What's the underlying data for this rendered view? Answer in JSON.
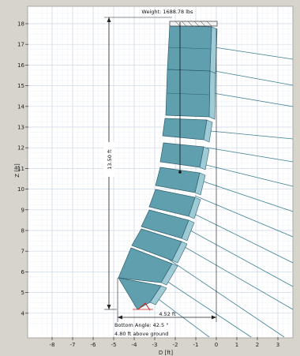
{
  "diagram": {
    "weight_label": "Weight: 1688.78 lbs",
    "height_dim_label": "13.50 ft",
    "width_dim_label": "4.52 ft",
    "bottom_angle_label": "Bottom Angle: 42.5 °",
    "above_ground_label": "4.80 ft above ground",
    "y_axis_label": "Z [ft]",
    "x_axis_label": "D [ft]",
    "y_ticks": [
      "18",
      "17",
      "16",
      "15",
      "14",
      "13",
      "12",
      "11",
      "10",
      "9",
      "8",
      "7",
      "6",
      "5",
      "4"
    ],
    "x_ticks": [
      "-8",
      "-7",
      "-6",
      "-5",
      "-4",
      "-3",
      "-2",
      "-1",
      "0",
      "1",
      "2",
      "3"
    ],
    "colors": {
      "background": "#d7d4cc",
      "plot_bg": "#ffffff",
      "grid": "#cfd9e6",
      "cabinet_fill": "#5f9fae",
      "cabinet_side": "#9ecbd6",
      "cabinet_stroke": "#2f5f6c",
      "ray": "#3c7f93",
      "dim_line": "#222222",
      "angle_mark": "#cc2222"
    }
  }
}
